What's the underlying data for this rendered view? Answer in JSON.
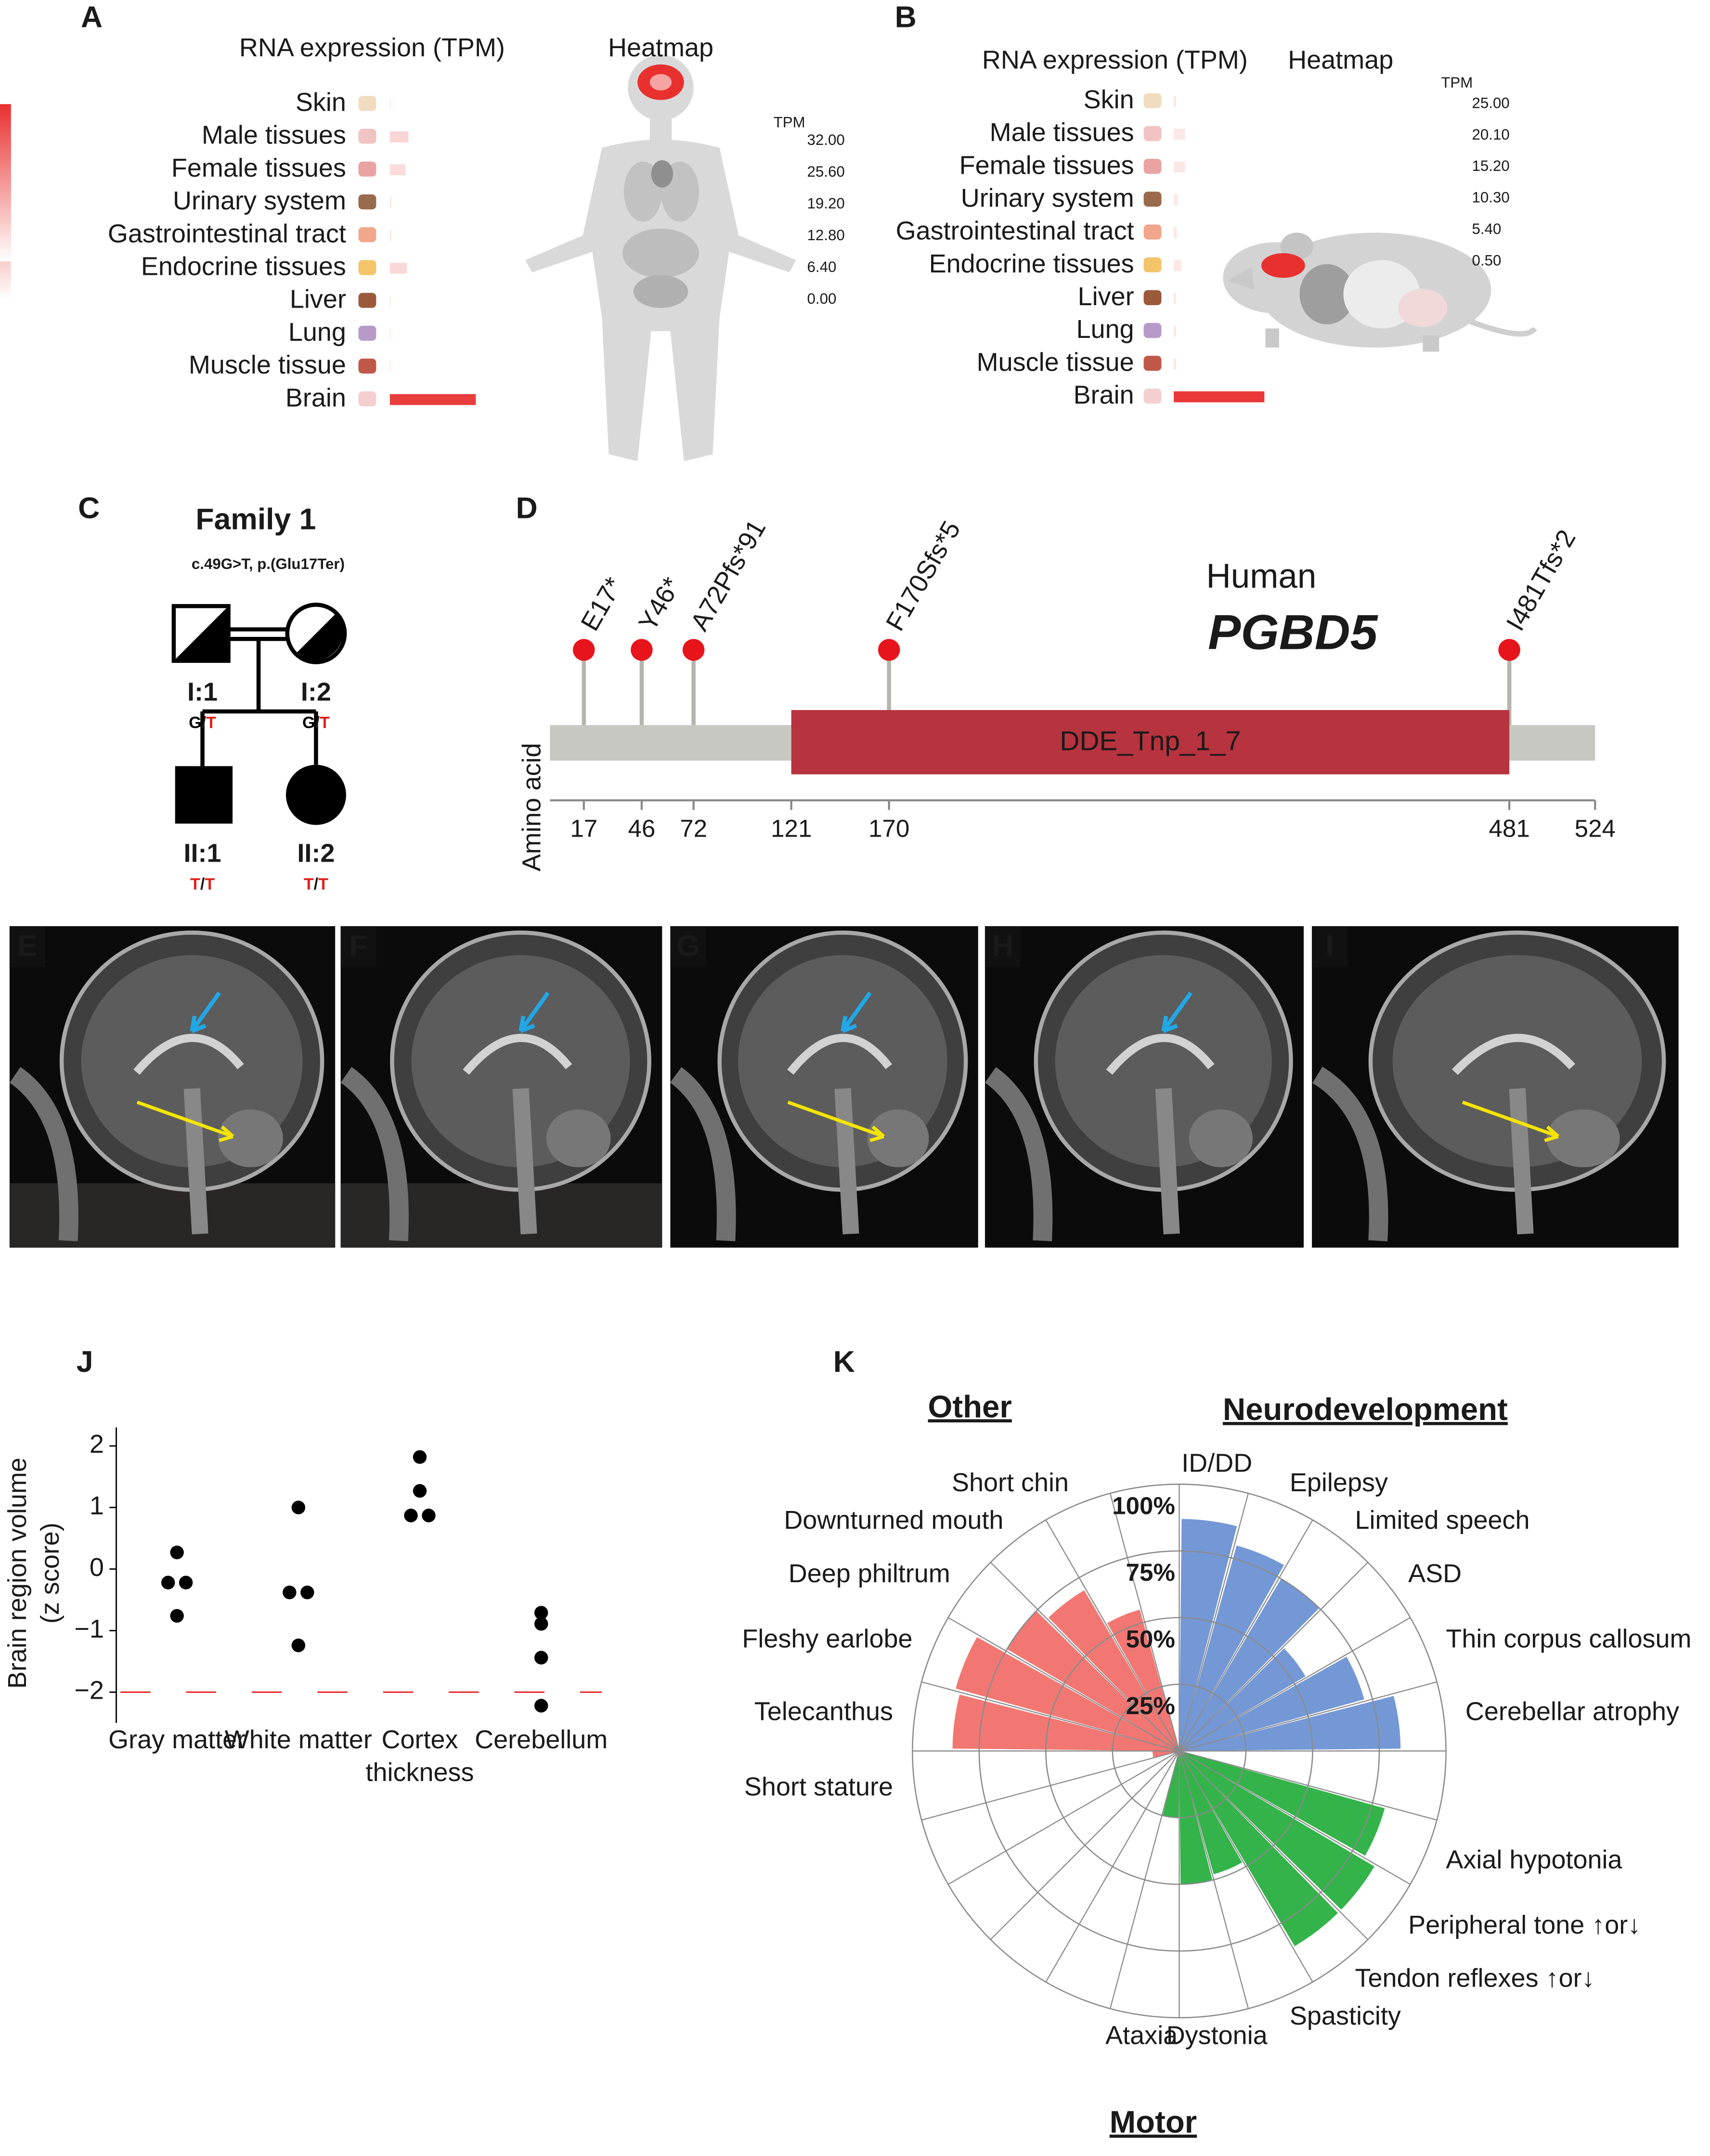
{
  "chart_data": [
    {
      "panel": "A",
      "type": "hbar",
      "title": "RNA expression (TPM)",
      "heatmap_title": "Heatmap",
      "categories": [
        "Skin",
        "Male tissues",
        "Female tissues",
        "Urinary system",
        "Gastrointestinal tract",
        "Endocrine tissues",
        "Liver",
        "Lung",
        "Muscle tissue",
        "Brain"
      ],
      "values": [
        0.3,
        6.5,
        5.5,
        0.5,
        0.5,
        6,
        0.3,
        0.3,
        0.3,
        30
      ],
      "xlim": [
        0,
        32
      ],
      "color": "#e8302f",
      "colorbar": {
        "title": "TPM",
        "lim": [
          0,
          32
        ],
        "ticks": [
          {
            "value": 32,
            "label": "32.00"
          },
          {
            "value": 25.6,
            "label": "25.60"
          },
          {
            "value": 19.2,
            "label": "19.20"
          },
          {
            "value": 12.8,
            "label": "12.80"
          },
          {
            "value": 6.4,
            "label": "6.40"
          },
          {
            "value": 0,
            "label": "0.00"
          }
        ]
      }
    },
    {
      "panel": "B",
      "type": "hbar",
      "title": "RNA expression (TPM)",
      "heatmap_title": "Heatmap",
      "categories": [
        "Skin",
        "Male tissues",
        "Female tissues",
        "Urinary system",
        "Gastrointestinal tract",
        "Endocrine tissues",
        "Liver",
        "Lung",
        "Muscle tissue",
        "Brain"
      ],
      "values": [
        0.6,
        3,
        3,
        1,
        0.8,
        2,
        0.6,
        0.6,
        0.6,
        24
      ],
      "xlim": [
        0,
        25
      ],
      "color": "#e8302f",
      "colorbar": {
        "title": "TPM",
        "lim": [
          0.5,
          25
        ],
        "ticks": [
          {
            "value": 25,
            "label": "25.00"
          },
          {
            "value": 20.1,
            "label": "20.10"
          },
          {
            "value": 15.2,
            "label": "15.20"
          },
          {
            "value": 10.3,
            "label": "10.30"
          },
          {
            "value": 5.4,
            "label": "5.40"
          },
          {
            "value": 0.5,
            "label": "0.50"
          }
        ]
      }
    },
    {
      "panel": "D",
      "type": "lollipop",
      "organism": "Human",
      "gene": "PGBD5",
      "ylabel": "Amino acid",
      "xlim": [
        0,
        524
      ],
      "xticks": [
        17,
        46,
        72,
        121,
        170,
        481,
        524
      ],
      "domain": {
        "name": "DDE_Tnp_1_7",
        "start": 121,
        "end": 481,
        "color": "#b7333e"
      },
      "protein_color": "#c8c8c3",
      "variant_color": "#e8141b",
      "variants": [
        {
          "label": "E17*",
          "position": 17
        },
        {
          "label": "Y46*",
          "position": 46
        },
        {
          "label": "A72Pfs*91",
          "position": 72
        },
        {
          "label": "F170Sfs*5",
          "position": 170
        },
        {
          "label": "I481Tfs*2",
          "position": 481
        }
      ]
    },
    {
      "panel": "J",
      "type": "strip",
      "ylabel": [
        "Brain region volume",
        "(z score)"
      ],
      "categories": [
        "Gray matter",
        "White matter",
        "Cortex thickness",
        "Cerebellum"
      ],
      "values": [
        [
          0.27,
          -0.22,
          -0.22,
          -0.76
        ],
        [
          1.0,
          -0.38,
          -0.38,
          -1.24
        ],
        [
          1.82,
          1.27,
          0.87,
          0.87
        ],
        [
          -0.71,
          -0.89,
          -1.44,
          -2.22
        ]
      ],
      "color": "#000000",
      "ylim": [
        -2.5,
        2.3
      ],
      "yticks": [
        2,
        1,
        0,
        {
          "value": -1,
          "label": "−1"
        },
        {
          "value": -2,
          "label": "−2"
        }
      ],
      "reference_line": -2,
      "reference_color": "#e8141b"
    },
    {
      "panel": "K",
      "type": "polar_bar",
      "categories": [
        "ID/DD",
        "Epilepsy",
        "Limited speech",
        "ASD",
        "Thin corpus callosum",
        "Cerebellar atrophy",
        null,
        "Axial hypotonia",
        "Peripheral tone ↑or↓",
        "Tendon reflexes ↑or↓",
        "Spasticity",
        "Dystonia",
        "Ataxia",
        null,
        null,
        null,
        null,
        "Short stature",
        "Telecanthus",
        "Fleshy earlobe",
        "Deep philtrum",
        "Downturned mouth",
        "Short chin",
        null
      ],
      "series": [
        {
          "name": "Neurodevelopment",
          "color": "#7498d6",
          "label_color": "#2e3192",
          "values": [
            87,
            80,
            75,
            55,
            72,
            83,
            null,
            null,
            null,
            null,
            null,
            null,
            null,
            null,
            null,
            null,
            null,
            null,
            null,
            null,
            null,
            null,
            null,
            null
          ]
        },
        {
          "name": "Motor",
          "color": "#33b34a",
          "label_color": "#1a7a2a",
          "values": [
            null,
            null,
            null,
            null,
            null,
            null,
            null,
            80,
            85,
            85,
            48,
            50,
            25,
            null,
            null,
            null,
            null,
            null,
            null,
            null,
            null,
            null,
            null,
            null
          ]
        },
        {
          "name": "Other",
          "color": "#f27773",
          "label_color": "#c1272d",
          "values": [
            null,
            null,
            null,
            null,
            null,
            null,
            null,
            null,
            null,
            null,
            null,
            null,
            null,
            null,
            null,
            null,
            null,
            10,
            85,
            87,
            75,
            70,
            55,
            null
          ]
        }
      ],
      "rlim": [
        0,
        100
      ],
      "rticks": [
        {
          "value": 25,
          "label": "25%"
        },
        {
          "value": 50,
          "label": "50%"
        },
        {
          "value": 75,
          "label": "75%"
        },
        {
          "value": 100,
          "label": "100%"
        }
      ]
    }
  ],
  "pedigree": {
    "panel": "C",
    "title": "Family 1",
    "variant": "c.49G>T, p.(Glu17Ter)",
    "allele_separator": "/",
    "mutant_allele": "T",
    "mutant_color": "#e0201b",
    "individuals": [
      {
        "id": "I:1",
        "alleles": [
          "G",
          "T"
        ]
      },
      {
        "id": "I:2",
        "alleles": [
          "G",
          "T"
        ]
      },
      {
        "id": "II:1",
        "alleles": [
          "T",
          "T"
        ]
      },
      {
        "id": "II:2",
        "alleles": [
          "T",
          "T"
        ]
      }
    ]
  },
  "mri": {
    "panels": [
      "E",
      "F",
      "G",
      "H",
      "I"
    ]
  }
}
